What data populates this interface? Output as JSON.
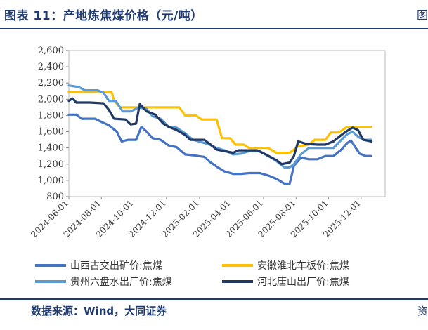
{
  "header": {
    "title": "图表 11：产地炼焦煤价格（元/吨）",
    "edge": "图"
  },
  "footer": {
    "source": "数据来源：Wind，大同证券",
    "edge": "资"
  },
  "chart_data": {
    "type": "line",
    "title": "图表 11：产地炼焦煤价格（元/吨）",
    "ylim": [
      800,
      2600
    ],
    "yticks": [
      "2,600",
      "2,400",
      "2,200",
      "2,000",
      "1,800",
      "1,600",
      "1,400",
      "1,200",
      "1,000",
      "800"
    ],
    "ytick_values": [
      2600,
      2400,
      2200,
      2000,
      1800,
      1600,
      1400,
      1200,
      1000,
      800
    ],
    "xlim": [
      "2024-06-01",
      "2026-01-15"
    ],
    "xticks": [
      "2024-06-01",
      "2024-08-01",
      "2024-10-01",
      "2024-12-01",
      "2025-02-01",
      "2025-04-01",
      "2025-06-01",
      "2025-08-01",
      "2025-10-01",
      "2025-12-01"
    ],
    "legend_placement": "bottom",
    "series": [
      {
        "name": "山西古交出矿价:焦煤",
        "color": "#4472c4",
        "points": [
          [
            "2024-06-01",
            1810
          ],
          [
            "2024-06-15",
            1810
          ],
          [
            "2024-06-25",
            1760
          ],
          [
            "2024-07-20",
            1760
          ],
          [
            "2024-08-01",
            1720
          ],
          [
            "2024-08-15",
            1680
          ],
          [
            "2024-08-30",
            1600
          ],
          [
            "2024-09-08",
            1480
          ],
          [
            "2024-09-20",
            1500
          ],
          [
            "2024-10-05",
            1500
          ],
          [
            "2024-10-15",
            1660
          ],
          [
            "2024-10-25",
            1600
          ],
          [
            "2024-11-05",
            1520
          ],
          [
            "2024-11-20",
            1500
          ],
          [
            "2024-12-05",
            1430
          ],
          [
            "2024-12-20",
            1410
          ],
          [
            "2025-01-05",
            1320
          ],
          [
            "2025-01-20",
            1310
          ],
          [
            "2025-02-10",
            1290
          ],
          [
            "2025-02-20",
            1230
          ],
          [
            "2025-03-05",
            1170
          ],
          [
            "2025-03-20",
            1110
          ],
          [
            "2025-04-05",
            1080
          ],
          [
            "2025-04-20",
            1080
          ],
          [
            "2025-05-05",
            1090
          ],
          [
            "2025-05-25",
            1090
          ],
          [
            "2025-06-10",
            1060
          ],
          [
            "2025-06-25",
            1020
          ],
          [
            "2025-07-10",
            960
          ],
          [
            "2025-07-20",
            960
          ],
          [
            "2025-07-28",
            1180
          ],
          [
            "2025-08-10",
            1280
          ],
          [
            "2025-08-25",
            1260
          ],
          [
            "2025-09-10",
            1260
          ],
          [
            "2025-09-25",
            1300
          ],
          [
            "2025-10-10",
            1300
          ],
          [
            "2025-10-25",
            1380
          ],
          [
            "2025-11-05",
            1460
          ],
          [
            "2025-11-12",
            1490
          ],
          [
            "2025-11-20",
            1410
          ],
          [
            "2025-11-28",
            1330
          ],
          [
            "2025-12-10",
            1300
          ],
          [
            "2025-12-20",
            1300
          ]
        ]
      },
      {
        "name": "安徽淮北车板价:焦煤",
        "color": "#ffc000",
        "points": [
          [
            "2024-06-01",
            2090
          ],
          [
            "2024-07-10",
            2090
          ],
          [
            "2024-07-20",
            2090
          ],
          [
            "2024-08-20",
            2090
          ],
          [
            "2024-08-25",
            1980
          ],
          [
            "2024-09-05",
            1900
          ],
          [
            "2024-09-25",
            1900
          ],
          [
            "2024-10-20",
            1900
          ],
          [
            "2024-11-20",
            1900
          ],
          [
            "2024-12-25",
            1900
          ],
          [
            "2025-01-05",
            1800
          ],
          [
            "2025-01-25",
            1800
          ],
          [
            "2025-02-05",
            1750
          ],
          [
            "2025-02-25",
            1750
          ],
          [
            "2025-03-05",
            1750
          ],
          [
            "2025-03-15",
            1520
          ],
          [
            "2025-03-30",
            1520
          ],
          [
            "2025-04-10",
            1440
          ],
          [
            "2025-04-25",
            1440
          ],
          [
            "2025-05-05",
            1400
          ],
          [
            "2025-06-10",
            1400
          ],
          [
            "2025-06-25",
            1340
          ],
          [
            "2025-07-20",
            1340
          ],
          [
            "2025-08-05",
            1420
          ],
          [
            "2025-08-25",
            1440
          ],
          [
            "2025-09-05",
            1500
          ],
          [
            "2025-09-25",
            1500
          ],
          [
            "2025-10-05",
            1590
          ],
          [
            "2025-10-20",
            1590
          ],
          [
            "2025-11-05",
            1660
          ],
          [
            "2025-11-25",
            1660
          ],
          [
            "2025-12-20",
            1660
          ]
        ]
      },
      {
        "name": "贵州六盘水出厂价:焦煤",
        "color": "#5b9bd5",
        "points": [
          [
            "2024-06-01",
            2170
          ],
          [
            "2024-06-20",
            2150
          ],
          [
            "2024-07-01",
            2110
          ],
          [
            "2024-07-25",
            2110
          ],
          [
            "2024-08-05",
            2080
          ],
          [
            "2024-08-15",
            1980
          ],
          [
            "2024-08-28",
            1980
          ],
          [
            "2024-09-10",
            1850
          ],
          [
            "2024-09-25",
            1850
          ],
          [
            "2024-10-10",
            1900
          ],
          [
            "2024-10-25",
            1880
          ],
          [
            "2024-11-05",
            1790
          ],
          [
            "2024-11-20",
            1760
          ],
          [
            "2024-12-05",
            1660
          ],
          [
            "2024-12-20",
            1650
          ],
          [
            "2025-01-05",
            1580
          ],
          [
            "2025-01-20",
            1500
          ],
          [
            "2025-02-10",
            1460
          ],
          [
            "2025-02-20",
            1440
          ],
          [
            "2025-03-05",
            1400
          ],
          [
            "2025-03-20",
            1370
          ],
          [
            "2025-04-05",
            1320
          ],
          [
            "2025-04-20",
            1330
          ],
          [
            "2025-05-05",
            1360
          ],
          [
            "2025-05-25",
            1360
          ],
          [
            "2025-06-10",
            1300
          ],
          [
            "2025-06-25",
            1240
          ],
          [
            "2025-07-10",
            1160
          ],
          [
            "2025-07-20",
            1160
          ],
          [
            "2025-07-28",
            1200
          ],
          [
            "2025-08-10",
            1320
          ],
          [
            "2025-08-25",
            1400
          ],
          [
            "2025-09-10",
            1400
          ],
          [
            "2025-09-25",
            1400
          ],
          [
            "2025-10-10",
            1400
          ],
          [
            "2025-10-25",
            1500
          ],
          [
            "2025-11-05",
            1570
          ],
          [
            "2025-11-15",
            1600
          ],
          [
            "2025-11-25",
            1540
          ],
          [
            "2025-12-05",
            1500
          ],
          [
            "2025-12-20",
            1500
          ]
        ]
      },
      {
        "name": "河北唐山出厂价:焦煤",
        "color": "#1f3864",
        "points": [
          [
            "2024-06-01",
            1980
          ],
          [
            "2024-06-08",
            2010
          ],
          [
            "2024-06-15",
            1960
          ],
          [
            "2024-07-10",
            1960
          ],
          [
            "2024-08-05",
            1950
          ],
          [
            "2024-08-15",
            1870
          ],
          [
            "2024-08-25",
            1760
          ],
          [
            "2024-09-15",
            1750
          ],
          [
            "2024-09-25",
            1690
          ],
          [
            "2024-10-05",
            1700
          ],
          [
            "2024-10-12",
            1940
          ],
          [
            "2024-10-25",
            1850
          ],
          [
            "2024-11-10",
            1810
          ],
          [
            "2024-11-25",
            1700
          ],
          [
            "2024-12-05",
            1660
          ],
          [
            "2024-12-20",
            1620
          ],
          [
            "2025-01-05",
            1560
          ],
          [
            "2025-01-15",
            1500
          ],
          [
            "2025-02-10",
            1500
          ],
          [
            "2025-02-20",
            1450
          ],
          [
            "2025-03-05",
            1380
          ],
          [
            "2025-03-20",
            1360
          ],
          [
            "2025-04-05",
            1340
          ],
          [
            "2025-04-15",
            1370
          ],
          [
            "2025-05-05",
            1370
          ],
          [
            "2025-05-20",
            1370
          ],
          [
            "2025-06-05",
            1320
          ],
          [
            "2025-06-25",
            1250
          ],
          [
            "2025-07-05",
            1200
          ],
          [
            "2025-07-20",
            1220
          ],
          [
            "2025-07-28",
            1300
          ],
          [
            "2025-08-05",
            1480
          ],
          [
            "2025-08-20",
            1450
          ],
          [
            "2025-09-10",
            1440
          ],
          [
            "2025-09-25",
            1440
          ],
          [
            "2025-10-10",
            1480
          ],
          [
            "2025-10-25",
            1560
          ],
          [
            "2025-11-05",
            1610
          ],
          [
            "2025-11-15",
            1650
          ],
          [
            "2025-11-25",
            1620
          ],
          [
            "2025-12-05",
            1500
          ],
          [
            "2025-12-20",
            1480
          ]
        ]
      }
    ]
  }
}
